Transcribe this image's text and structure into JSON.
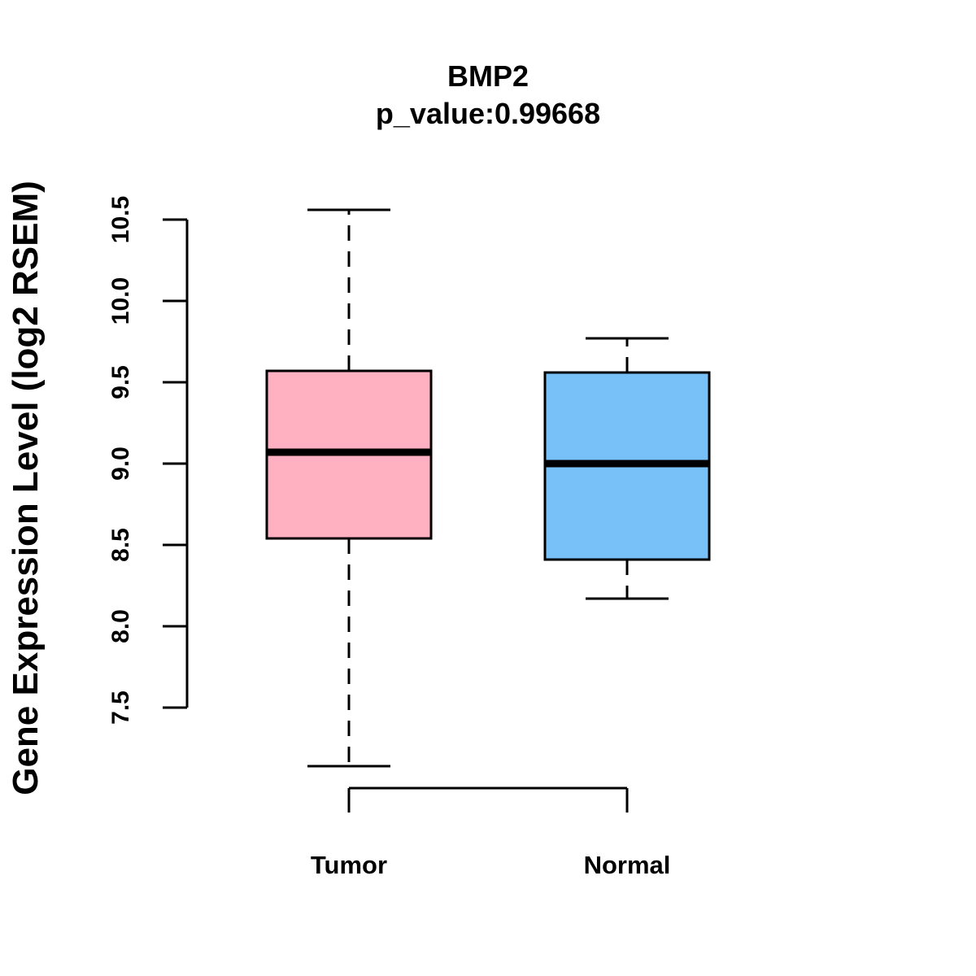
{
  "chart_data": {
    "type": "boxplot",
    "title": "BMP2",
    "subtitle": "p_value:0.99668",
    "xlabel": "",
    "ylabel": "Gene Expression Level (log2 RSEM)",
    "y_ticks": [
      "7.5",
      "8.0",
      "8.5",
      "9.0",
      "9.5",
      "10.0",
      "10.5"
    ],
    "grid": false,
    "categories": [
      "Tumor",
      "Normal"
    ],
    "boxes": [
      {
        "name": "Tumor",
        "whisker_low": 7.14,
        "q1": 8.54,
        "median": 9.07,
        "q3": 9.57,
        "whisker_high": 10.56,
        "color": "#FFB0C1"
      },
      {
        "name": "Normal",
        "whisker_low": 8.17,
        "q1": 8.41,
        "median": 9.0,
        "q3": 9.56,
        "whisker_high": 9.77,
        "color": "#78C1F8"
      }
    ]
  }
}
